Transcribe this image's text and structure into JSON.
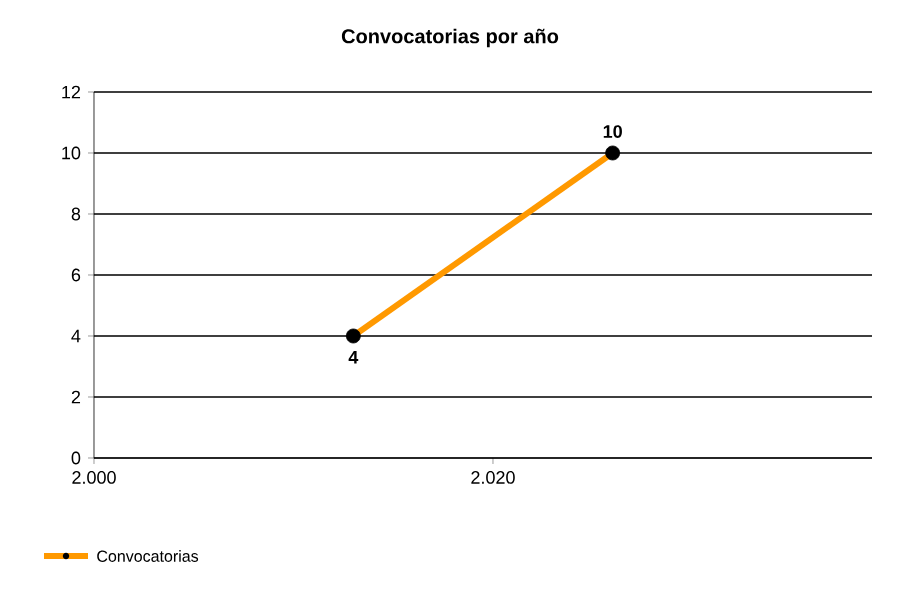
{
  "chart_data": {
    "type": "line",
    "title": "Convocatorias por año",
    "x": [
      2013,
      2026
    ],
    "series": [
      {
        "name": "Convocatorias",
        "color": "#ff9900",
        "values": [
          4,
          10
        ]
      }
    ],
    "xlim": [
      2000,
      2039
    ],
    "xticks": [
      {
        "value": 2000,
        "label": "2.000"
      },
      {
        "value": 2020,
        "label": "2.020"
      }
    ],
    "ylim": [
      0,
      12
    ],
    "yticks": [
      0,
      2,
      4,
      6,
      8,
      10,
      12
    ],
    "grid": "y",
    "legend": "bottom left",
    "marker": "circle",
    "data_labels": true
  }
}
